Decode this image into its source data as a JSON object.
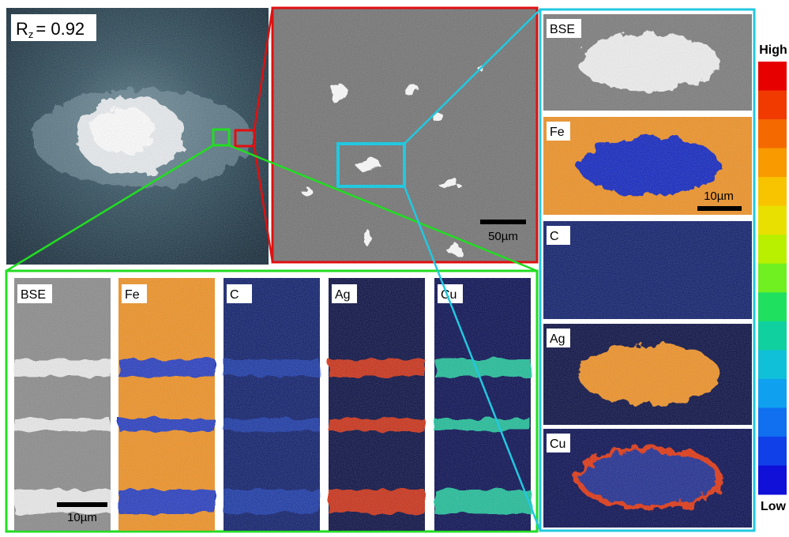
{
  "overview": {
    "rz_symbol": "R",
    "rz_subscript": "z",
    "rz_value": "= 0.92"
  },
  "sem": {
    "scale_bar": "50µm"
  },
  "cross_section": {
    "panels": [
      "BSE",
      "Fe",
      "C",
      "Ag",
      "Cu"
    ],
    "scale_bar": "10µm"
  },
  "particle": {
    "panels": [
      "BSE",
      "Fe",
      "C",
      "Ag",
      "Cu"
    ],
    "scale_bar": "10µm"
  },
  "colorbar": {
    "high": "High",
    "low": "Low",
    "colors": [
      "#e60000",
      "#f03a00",
      "#f56a00",
      "#f89a00",
      "#f8c400",
      "#e8e000",
      "#b8f000",
      "#70f020",
      "#20e060",
      "#10d0a0",
      "#10c0d8",
      "#10a0f0",
      "#1070f0",
      "#1040e8",
      "#1010d8"
    ]
  }
}
